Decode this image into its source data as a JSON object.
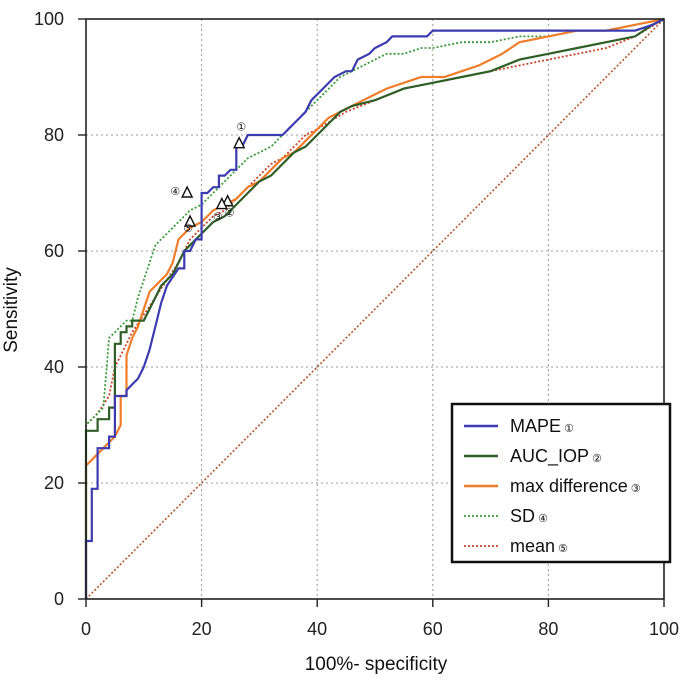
{
  "chart_data": {
    "type": "line",
    "title": "",
    "xlabel": "100%- specificity",
    "ylabel": "Sensitivity",
    "xlim": [
      0,
      100
    ],
    "ylim": [
      0,
      100
    ],
    "xticks": [
      0,
      20,
      40,
      60,
      80,
      100
    ],
    "yticks": [
      0,
      20,
      40,
      60,
      80,
      100
    ],
    "grid": "dotted",
    "legend_position": "bottom-right",
    "series": [
      {
        "name": "MAPE",
        "marker_label": "①",
        "color": "#3c3cb0",
        "style": "solid",
        "operating_point": [
          26.5,
          78.5
        ],
        "x": [
          0,
          0,
          1,
          1,
          2,
          2,
          4,
          4,
          5,
          5,
          7,
          7,
          8,
          9,
          10,
          11,
          12,
          13,
          14,
          16,
          17,
          17,
          18,
          19,
          20,
          20,
          21,
          22,
          23,
          23,
          24,
          25,
          26,
          26,
          27,
          28,
          30,
          32,
          34,
          36,
          37,
          38,
          39,
          40,
          41,
          43,
          45,
          46,
          47,
          49,
          50,
          52,
          53,
          58,
          59,
          60,
          62,
          70,
          72,
          73,
          78,
          82,
          90,
          95,
          98,
          100
        ],
        "y": [
          0,
          10,
          10,
          19,
          19,
          26,
          26,
          28,
          28,
          35,
          35,
          36,
          37,
          38,
          40,
          43,
          47,
          51,
          54,
          57,
          57,
          60,
          60,
          62,
          62,
          70,
          70,
          71,
          71,
          73,
          73,
          74,
          74,
          78,
          78,
          80,
          80,
          80,
          80,
          82,
          83,
          84,
          86,
          87,
          88,
          90,
          91,
          91,
          93,
          94,
          95,
          96,
          97,
          97,
          97,
          98,
          98,
          98,
          98,
          98,
          98,
          98,
          98,
          98,
          99,
          100
        ]
      },
      {
        "name": "AUC_IOP",
        "marker_label": "②",
        "color": "#2e5e26",
        "style": "solid",
        "operating_point": [
          24.5,
          68.5
        ],
        "x": [
          0,
          0,
          2,
          2,
          4,
          4,
          5,
          5,
          6,
          6,
          7,
          7,
          8,
          8,
          10,
          11,
          12,
          13,
          14,
          15,
          16,
          17,
          18,
          19,
          20,
          22,
          24,
          26,
          28,
          30,
          32,
          34,
          36,
          38,
          40,
          42,
          44,
          46,
          50,
          55,
          60,
          65,
          70,
          75,
          80,
          85,
          90,
          95,
          98,
          100
        ],
        "y": [
          0,
          29,
          29,
          31,
          31,
          33,
          33,
          44,
          44,
          46,
          46,
          47,
          47,
          48,
          48,
          50,
          52,
          54,
          55,
          56,
          58,
          60,
          61,
          62,
          63,
          65,
          66,
          68,
          70,
          72,
          73,
          75,
          77,
          78,
          80,
          82,
          84,
          85,
          86,
          88,
          89,
          90,
          91,
          93,
          94,
          95,
          96,
          97,
          99,
          100
        ]
      },
      {
        "name": "max difference",
        "marker_label": "③",
        "color": "#f07d2a",
        "style": "solid",
        "operating_point": [
          23.5,
          68.0
        ],
        "x": [
          0,
          0,
          1,
          3,
          4,
          5,
          6,
          6,
          7,
          7,
          8,
          9,
          10,
          11,
          12,
          13,
          14,
          15,
          16,
          18,
          20,
          22,
          24,
          26,
          28,
          30,
          32,
          34,
          36,
          38,
          40,
          42,
          44,
          46,
          48,
          50,
          52,
          55,
          58,
          60,
          62,
          65,
          68,
          70,
          72,
          75,
          80,
          85,
          90,
          95,
          100
        ],
        "y": [
          0,
          23,
          24,
          26,
          27,
          28,
          30,
          35,
          35,
          42,
          45,
          47,
          50,
          53,
          54,
          55,
          56,
          58,
          62,
          64,
          65,
          67,
          68,
          69,
          71,
          72,
          74,
          76,
          77,
          79,
          81,
          83,
          84,
          85,
          86,
          87,
          88,
          89,
          90,
          90,
          90,
          91,
          92,
          93,
          94,
          96,
          97,
          98,
          98,
          99,
          100
        ]
      },
      {
        "name": "SD",
        "marker_label": "④",
        "color": "#3a9a3a",
        "style": "dotted",
        "operating_point": [
          17.5,
          70.0
        ],
        "x": [
          0,
          0,
          1,
          2,
          3,
          4,
          5,
          6,
          7,
          8,
          9,
          10,
          11,
          12,
          13,
          14,
          15,
          16,
          17,
          18,
          20,
          22,
          24,
          26,
          28,
          30,
          32,
          34,
          36,
          38,
          40,
          42,
          44,
          46,
          48,
          50,
          52,
          55,
          58,
          60,
          65,
          70,
          75,
          80,
          85,
          90,
          95,
          100
        ],
        "y": [
          0,
          30,
          31,
          32,
          33,
          45,
          46,
          47,
          48,
          48,
          52,
          55,
          58,
          61,
          62,
          63,
          64,
          65,
          66,
          67,
          68,
          70,
          72,
          74,
          76,
          77,
          78,
          80,
          82,
          84,
          86,
          88,
          90,
          91,
          92,
          93,
          94,
          94,
          95,
          95,
          96,
          96,
          97,
          97,
          98,
          98,
          99,
          100
        ]
      },
      {
        "name": "mean",
        "marker_label": "⑤",
        "color": "#c8442a",
        "style": "dotted",
        "operating_point": [
          18.0,
          65.0
        ],
        "x": [
          0,
          0,
          1,
          2,
          4,
          5,
          6,
          7,
          8,
          10,
          12,
          14,
          16,
          18,
          20,
          22,
          24,
          26,
          28,
          30,
          32,
          34,
          36,
          38,
          40,
          45,
          50,
          55,
          60,
          65,
          70,
          75,
          80,
          85,
          90,
          95,
          100
        ],
        "y": [
          0,
          30,
          31,
          32,
          35,
          40,
          42,
          44,
          46,
          49,
          52,
          55,
          58,
          62,
          64,
          66,
          67,
          69,
          71,
          73,
          75,
          76,
          78,
          80,
          81,
          84,
          86,
          88,
          89,
          90,
          91,
          92,
          93,
          94,
          95,
          97,
          100
        ]
      }
    ],
    "reference_line": {
      "name": "chance",
      "color": "#b5562e",
      "style": "dotted",
      "x": [
        0,
        100
      ],
      "y": [
        0,
        100
      ]
    }
  }
}
